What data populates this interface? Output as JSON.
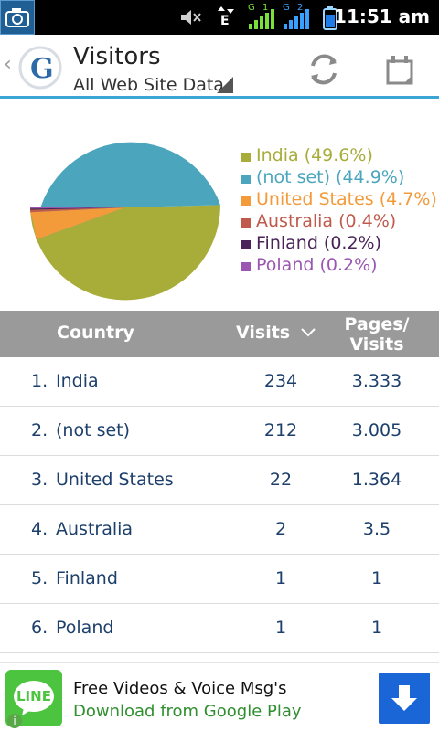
{
  "status_bar": {
    "time": "11:51 am",
    "network_label_1": "G",
    "network_label_2": "G",
    "sim1": "1",
    "sim2": "2",
    "data_type": "E",
    "icons": [
      "camera-icon",
      "mute-icon",
      "data-transfer-icon",
      "signal-icon",
      "signal-icon",
      "battery-icon"
    ]
  },
  "header": {
    "title": "Visitors",
    "subtitle": "All Web Site Data",
    "actions": [
      "refresh-icon",
      "calendar-icon"
    ]
  },
  "chart_data": {
    "type": "pie",
    "slices": [
      {
        "label": "India",
        "value": 49.6,
        "color": "#a8ad3a"
      },
      {
        "label": "(not set)",
        "value": 44.9,
        "color": "#4aa5bd"
      },
      {
        "label": "United States",
        "value": 4.7,
        "color": "#f39b3a"
      },
      {
        "label": "Australia",
        "value": 0.4,
        "color": "#c05a4c"
      },
      {
        "label": "Finland",
        "value": 0.2,
        "color": "#4a2459"
      },
      {
        "label": "Poland",
        "value": 0.2,
        "color": "#9a56b0"
      }
    ],
    "legend_labels": [
      "India (49.6%)",
      "(not set) (44.9%)",
      "United States (4.7%)",
      "Australia (0.4%)",
      "Finland (0.2%)",
      "Poland (0.2%)"
    ],
    "legend_position": "right"
  },
  "table": {
    "headers": {
      "country": "Country",
      "visits": "Visits",
      "pages_visits_line1": "Pages/",
      "pages_visits_line2": "Visits"
    },
    "rows": [
      {
        "rank": "1.",
        "country": "India",
        "visits": "234",
        "pages_visits": "3.333"
      },
      {
        "rank": "2.",
        "country": "(not set)",
        "visits": "212",
        "pages_visits": "3.005"
      },
      {
        "rank": "3.",
        "country": "United States",
        "visits": "22",
        "pages_visits": "1.364"
      },
      {
        "rank": "4.",
        "country": "Australia",
        "visits": "2",
        "pages_visits": "3.5"
      },
      {
        "rank": "5.",
        "country": "Finland",
        "visits": "1",
        "pages_visits": "1"
      },
      {
        "rank": "6.",
        "country": "Poland",
        "visits": "1",
        "pages_visits": "1"
      }
    ]
  },
  "ad": {
    "logo_text": "LINE",
    "title": "Free Videos & Voice Msg's",
    "subtitle": "Download from Google Play",
    "info_icon": "i"
  },
  "colors": {
    "accent": "#3ba5d4",
    "table_header_bg": "#9a9a9a",
    "row_text": "#1d3f6b"
  }
}
